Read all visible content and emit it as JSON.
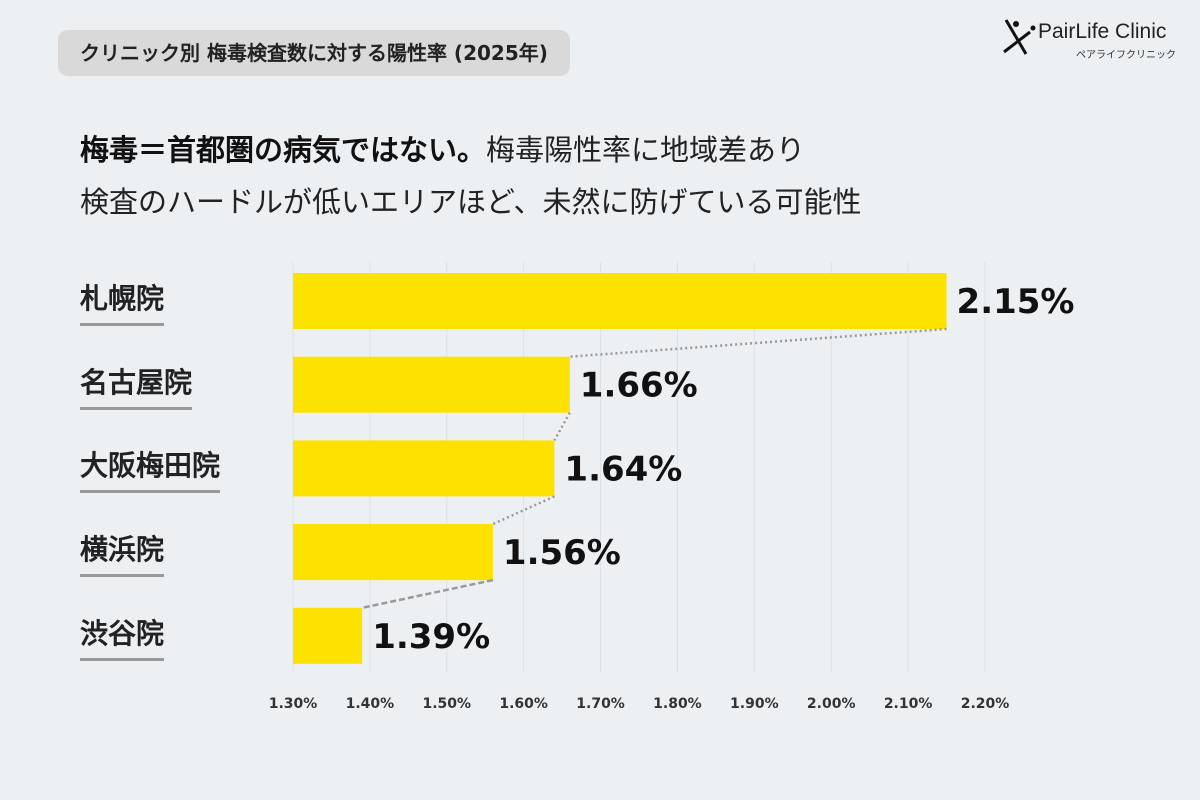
{
  "badge_title": "クリニック別 梅毒検査数に対する陽性率 (2025年)",
  "logo": {
    "name": "PairLife Clinic",
    "sub": "ペアライフクリニック"
  },
  "headline": {
    "bold": "梅毒＝首都圏の病気ではない。",
    "line1_rest": "梅毒陽性率に地域差あり",
    "line2": "検査のハードルが低いエリアほど、未然に防げている可能性"
  },
  "chart_data": {
    "type": "bar",
    "orientation": "horizontal",
    "categories": [
      "札幌院",
      "名古屋院",
      "大阪梅田院",
      "横浜院",
      "渋谷院"
    ],
    "values": [
      2.15,
      1.66,
      1.64,
      1.56,
      1.39
    ],
    "value_labels": [
      "2.15%",
      "1.66%",
      "1.64%",
      "1.56%",
      "1.39%"
    ],
    "xlim": [
      1.3,
      2.2
    ],
    "xticks": [
      "1.30%",
      "1.40%",
      "1.50%",
      "1.60%",
      "1.70%",
      "1.80%",
      "1.90%",
      "2.00%",
      "2.10%",
      "2.20%"
    ],
    "grid": true,
    "bar_color": "#fde200",
    "connector_color": "#999999"
  }
}
